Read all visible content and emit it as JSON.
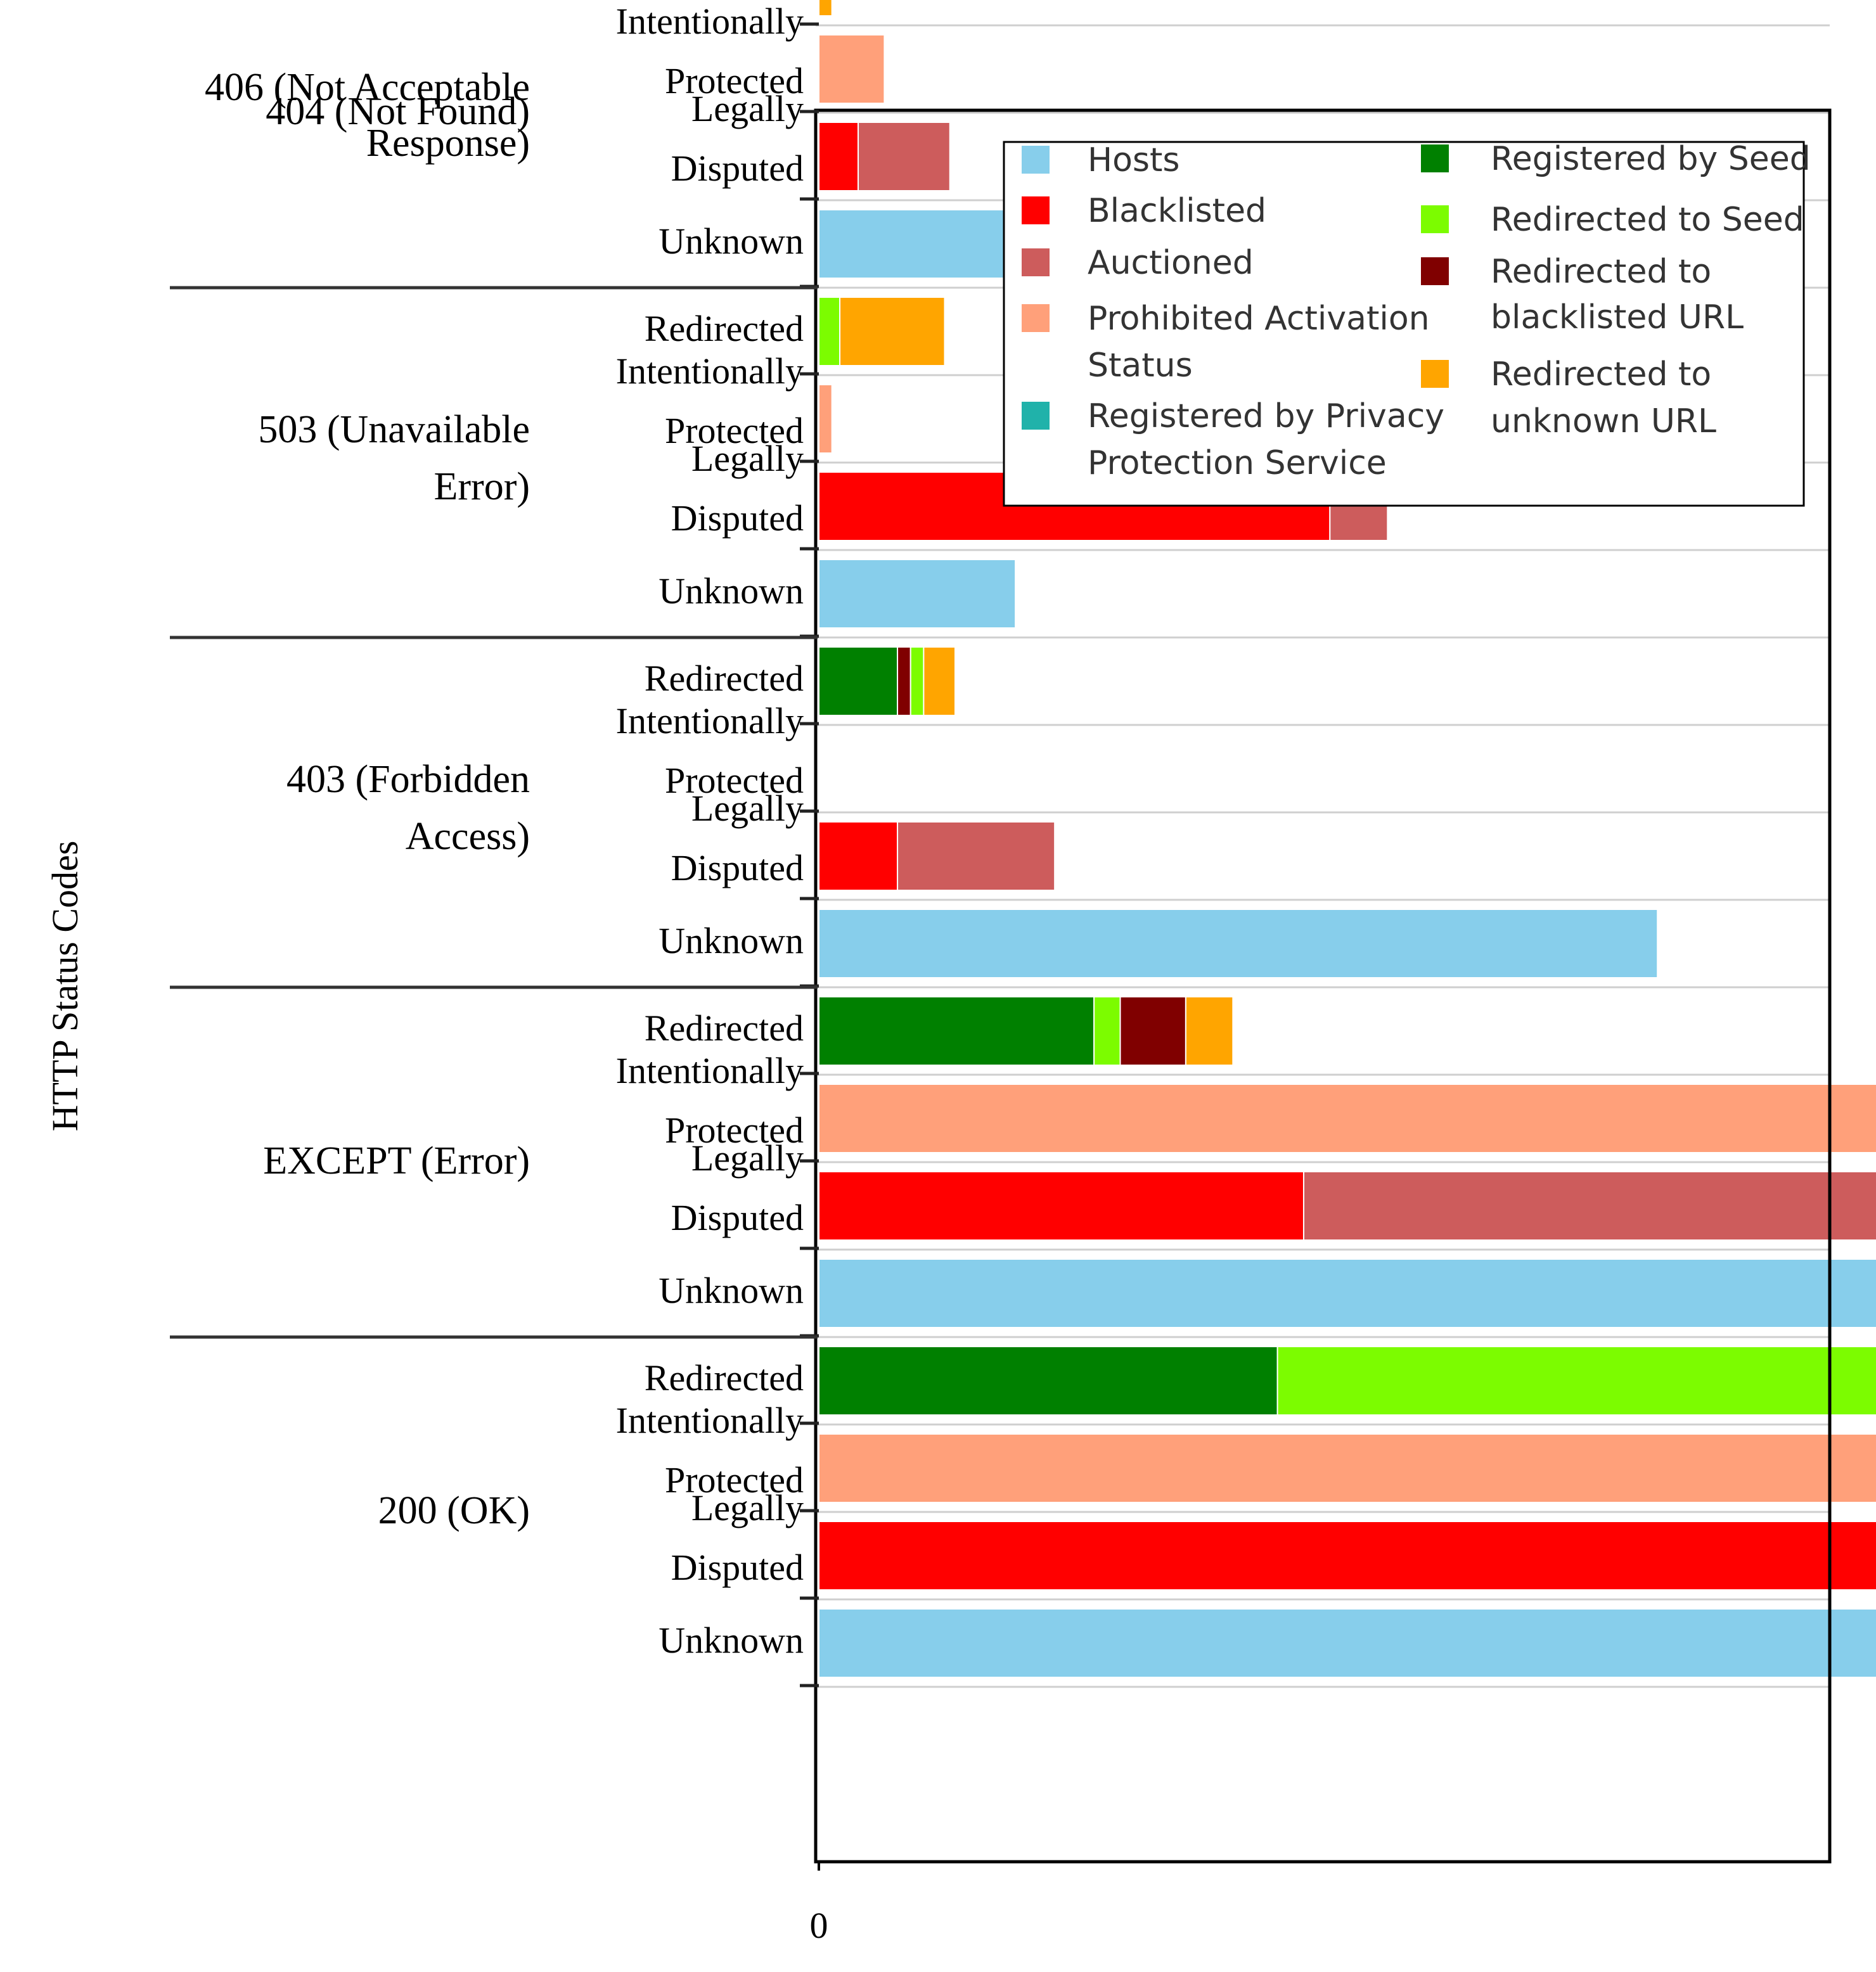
{
  "chart_data": {
    "type": "bar",
    "orientation": "horizontal",
    "stacked": true,
    "ylabel": "HTTP Status Codes",
    "xlabel": "",
    "xlim": [
      0,
      19.3
    ],
    "xticks": [
      0,
      5,
      10,
      15
    ],
    "grid": true,
    "legend_position": "top-right",
    "series": [
      {
        "key": "hosts",
        "name": "Hosts",
        "color": "#87CEEB"
      },
      {
        "key": "blacklisted",
        "name": "Blacklisted",
        "color": "#FF0000"
      },
      {
        "key": "auctioned",
        "name": "Auctioned",
        "color": "#CD5C5C"
      },
      {
        "key": "prohibited",
        "name": "Prohibited Activation Status",
        "color": "#FFA07A"
      },
      {
        "key": "privacy",
        "name": "Registered by Privacy Protection Service",
        "color": "#20B2AA"
      },
      {
        "key": "seed",
        "name": "Registered by Seed",
        "color": "#008000"
      },
      {
        "key": "redir_seed",
        "name": "Redirected to Seed",
        "color": "#7CFC00"
      },
      {
        "key": "redir_black",
        "name": "Redirected to blacklisted URL",
        "color": "#800000"
      },
      {
        "key": "redir_unknown",
        "name": "Redirected to unknown URL",
        "color": "#FFA500"
      }
    ],
    "legend_columns": [
      [
        {
          "key": "hosts",
          "lines": [
            "Hosts"
          ]
        },
        {
          "key": "blacklisted",
          "lines": [
            "Blacklisted"
          ]
        },
        {
          "key": "auctioned",
          "lines": [
            "Auctioned"
          ]
        },
        {
          "key": "prohibited",
          "lines": [
            "Prohibited Activation",
            "Status"
          ]
        },
        {
          "key": "privacy",
          "lines": [
            "Registered by Privacy",
            "Protection Service"
          ]
        }
      ],
      [
        {
          "key": "seed",
          "lines": [
            "Registered by Seed"
          ]
        },
        {
          "key": "redir_seed",
          "lines": [
            "Redirected to Seed"
          ]
        },
        {
          "key": "redir_black",
          "lines": [
            "Redirected to",
            "blacklisted URL"
          ]
        },
        {
          "key": "redir_unknown",
          "lines": [
            "Redirected to",
            "unknown URL"
          ]
        }
      ]
    ],
    "groups": [
      {
        "label_lines": [
          "406 (Not Acceptable",
          "Response)"
        ],
        "rows": [
          {
            "label_lines": [
              "Unknown"
            ],
            "segments": [
              {
                "series": "hosts",
                "value": 0.5
              }
            ]
          }
        ]
      },
      {
        "label_lines": [
          "404 (Not Found)"
        ],
        "rows": [
          {
            "label_lines": [
              "Redirected"
            ],
            "segments": [
              {
                "series": "redir_unknown",
                "value": 0.05
              }
            ]
          },
          {
            "label_lines": [
              "Intentionally",
              "Protected"
            ],
            "segments": [
              {
                "series": "prohibited",
                "value": 0.25
              }
            ]
          },
          {
            "label_lines": [
              "Legally",
              "Disputed"
            ],
            "segments": [
              {
                "series": "blacklisted",
                "value": 0.15
              },
              {
                "series": "auctioned",
                "value": 0.35
              }
            ]
          },
          {
            "label_lines": [
              "Unknown"
            ],
            "segments": [
              {
                "series": "hosts",
                "value": 1.6
              }
            ]
          }
        ]
      },
      {
        "label_lines": [
          "503 (Unavailable",
          "Error)"
        ],
        "rows": [
          {
            "label_lines": [
              "Redirected"
            ],
            "segments": [
              {
                "series": "redir_seed",
                "value": 0.08
              },
              {
                "series": "redir_unknown",
                "value": 0.4
              }
            ]
          },
          {
            "label_lines": [
              "Intentionally",
              "Protected"
            ],
            "segments": [
              {
                "series": "prohibited",
                "value": 0.05
              }
            ]
          },
          {
            "label_lines": [
              "Legally",
              "Disputed"
            ],
            "segments": [
              {
                "series": "blacklisted",
                "value": 1.95
              },
              {
                "series": "auctioned",
                "value": 0.22
              }
            ]
          },
          {
            "label_lines": [
              "Unknown"
            ],
            "segments": [
              {
                "series": "hosts",
                "value": 0.75
              }
            ]
          }
        ]
      },
      {
        "label_lines": [
          "403 (Forbidden",
          "Access)"
        ],
        "rows": [
          {
            "label_lines": [
              "Redirected"
            ],
            "segments": [
              {
                "series": "seed",
                "value": 0.3
              },
              {
                "series": "redir_black",
                "value": 0.05
              },
              {
                "series": "redir_seed",
                "value": 0.05
              },
              {
                "series": "redir_unknown",
                "value": 0.12
              }
            ]
          },
          {
            "label_lines": [
              "Intentionally",
              "Protected"
            ],
            "segments": []
          },
          {
            "label_lines": [
              "Legally",
              "Disputed"
            ],
            "segments": [
              {
                "series": "blacklisted",
                "value": 0.3
              },
              {
                "series": "auctioned",
                "value": 0.6
              }
            ]
          },
          {
            "label_lines": [
              "Unknown"
            ],
            "segments": [
              {
                "series": "hosts",
                "value": 3.2
              }
            ]
          }
        ]
      },
      {
        "label_lines": [
          "EXCEPT (Error)"
        ],
        "rows": [
          {
            "label_lines": [
              "Redirected"
            ],
            "segments": [
              {
                "series": "seed",
                "value": 1.05
              },
              {
                "series": "redir_seed",
                "value": 0.1
              },
              {
                "series": "redir_black",
                "value": 0.25
              },
              {
                "series": "redir_unknown",
                "value": 0.18
              }
            ]
          },
          {
            "label_lines": [
              "Intentionally",
              "Protected"
            ],
            "segments": [
              {
                "series": "prohibited",
                "value": 8.45
              },
              {
                "series": "privacy",
                "value": 0.15
              }
            ]
          },
          {
            "label_lines": [
              "Legally",
              "Disputed"
            ],
            "segments": [
              {
                "series": "blacklisted",
                "value": 1.85
              },
              {
                "series": "auctioned",
                "value": 2.9
              }
            ]
          },
          {
            "label_lines": [
              "Unknown"
            ],
            "segments": [
              {
                "series": "hosts",
                "value": 11.6
              }
            ]
          }
        ]
      },
      {
        "label_lines": [
          "200 (OK)"
        ],
        "rows": [
          {
            "label_lines": [
              "Redirected"
            ],
            "segments": [
              {
                "series": "seed",
                "value": 1.75
              },
              {
                "series": "redir_seed",
                "value": 8.55
              },
              {
                "series": "redir_black",
                "value": 1.1
              },
              {
                "series": "redir_unknown",
                "value": 6.55
              }
            ]
          },
          {
            "label_lines": [
              "Intentionally",
              "Protected"
            ],
            "segments": [
              {
                "series": "prohibited",
                "value": 6.85
              },
              {
                "series": "privacy",
                "value": 0.85
              }
            ]
          },
          {
            "label_lines": [
              "Legally",
              "Disputed"
            ],
            "segments": [
              {
                "series": "blacklisted",
                "value": 8.15
              },
              {
                "series": "auctioned",
                "value": 9.65
              }
            ]
          },
          {
            "label_lines": [
              "Unknown"
            ],
            "segments": [
              {
                "series": "hosts",
                "value": 18.3
              }
            ]
          }
        ]
      }
    ]
  }
}
